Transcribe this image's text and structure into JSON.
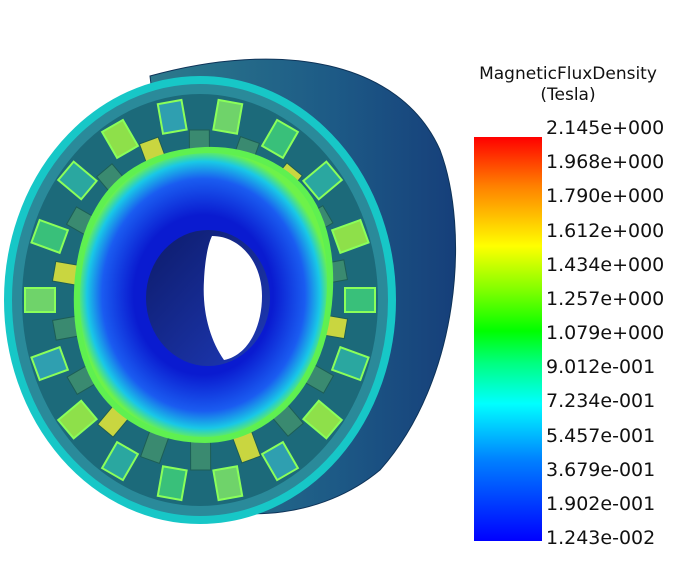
{
  "legend": {
    "title_line1": "MagneticFluxDensity",
    "title_line2": "(Tesla)",
    "ticks": [
      "2.145e+000",
      "1.968e+000",
      "1.790e+000",
      "1.612e+000",
      "1.434e+000",
      "1.257e+000",
      "1.079e+000",
      "9.012e-001",
      "7.234e-001",
      "5.457e-001",
      "3.679e-001",
      "1.902e-001",
      "1.243e-002"
    ],
    "colormap": [
      "#ff0000",
      "#ff7f00",
      "#ffff00",
      "#7fff00",
      "#00ff00",
      "#00ffff",
      "#0080ff",
      "#0000ff"
    ]
  },
  "scene": {
    "subject": "electric machine stator and rotor",
    "colors": {
      "housing": "#1f5a7a",
      "stator_teeth": "#2fae8e",
      "rotor_core": "#1433d6",
      "rotor_hot": "#7fff00",
      "bore": "#12248a"
    }
  }
}
